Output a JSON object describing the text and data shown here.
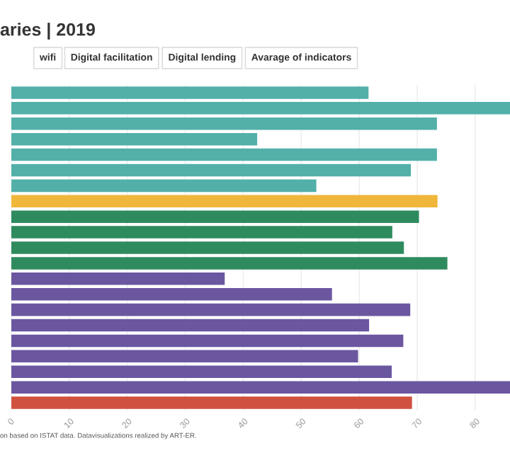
{
  "chart_data": {
    "type": "bar",
    "orientation": "horizontal",
    "title": "aries | 2019",
    "annotations": [
      "wifi",
      "Digital facilitation",
      "Digital lending",
      "Avarage of indicators",
      "on based on ISTAT data. Datavisualizations realized by ART-ER."
    ],
    "categories": [
      null,
      null,
      null,
      null,
      null,
      null,
      null,
      null,
      null,
      null,
      null,
      null,
      null,
      null,
      null,
      null,
      null,
      null,
      null,
      null,
      null
    ],
    "values": [
      61.6,
      86,
      73.4,
      42.4,
      73.4,
      68.9,
      52.6,
      73.5,
      70.3,
      65.7,
      67.7,
      75.2,
      36.8,
      55.3,
      68.8,
      61.7,
      67.6,
      59.8,
      65.6,
      86,
      69.1
    ],
    "colors": [
      "#52b0a9",
      "#52b0a9",
      "#52b0a9",
      "#52b0a9",
      "#52b0a9",
      "#52b0a9",
      "#52b0a9",
      "#f0b63a",
      "#2e8b5e",
      "#2e8b5e",
      "#2e8b5e",
      "#2e8b5e",
      "#6b56a0",
      "#6b56a0",
      "#6b56a0",
      "#6b56a0",
      "#6b56a0",
      "#6b56a0",
      "#6b56a0",
      "#6b56a0",
      "#d0513f"
    ],
    "xlim": [
      0,
      86
    ],
    "xticks": [
      0,
      10,
      20,
      30,
      40,
      50,
      60,
      70,
      80
    ],
    "grid": "x"
  }
}
